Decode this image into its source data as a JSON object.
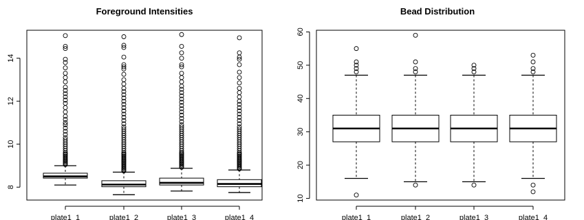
{
  "chart_data": [
    {
      "type": "boxplot",
      "title": "Foreground Intensities",
      "xlabel": "",
      "ylabel": "",
      "categories": [
        "plate1_1",
        "plate1_2",
        "plate1_3",
        "plate1_4"
      ],
      "ylim": [
        7.4,
        15.3
      ],
      "yticks": [
        8,
        10,
        12,
        14
      ],
      "boxes": [
        {
          "min": 8.1,
          "q1": 8.42,
          "median": 8.5,
          "q3": 8.65,
          "max": 9.0,
          "outliers": [
            9.05,
            9.1,
            9.15,
            9.2,
            9.25,
            9.3,
            9.35,
            9.4,
            9.45,
            9.5,
            9.55,
            9.6,
            9.7,
            9.8,
            9.9,
            10.0,
            10.1,
            10.2,
            10.3,
            10.45,
            10.6,
            10.75,
            10.9,
            11.0,
            11.15,
            11.3,
            11.5,
            11.7,
            11.9,
            12.05,
            12.2,
            12.35,
            12.5,
            12.65,
            12.9,
            13.1,
            13.3,
            13.55,
            13.8,
            13.95,
            14.45,
            14.55,
            15.05
          ]
        },
        {
          "min": 7.65,
          "q1": 8.02,
          "median": 8.12,
          "q3": 8.3,
          "max": 8.7,
          "outliers": [
            8.75,
            8.8,
            8.85,
            8.9,
            8.95,
            9.0,
            9.05,
            9.1,
            9.15,
            9.2,
            9.25,
            9.3,
            9.35,
            9.4,
            9.45,
            9.5,
            9.55,
            9.6,
            9.7,
            9.8,
            9.9,
            10.0,
            10.1,
            10.2,
            10.3,
            10.4,
            10.5,
            10.6,
            10.7,
            10.8,
            10.95,
            11.1,
            11.25,
            11.4,
            11.55,
            11.7,
            11.85,
            12.0,
            12.15,
            12.3,
            12.45,
            12.6,
            12.8,
            13.0,
            13.25,
            13.5,
            13.6,
            13.7,
            14.05,
            14.5,
            14.6,
            15.0
          ]
        },
        {
          "min": 7.82,
          "q1": 8.1,
          "median": 8.2,
          "q3": 8.42,
          "max": 8.88,
          "outliers": [
            8.92,
            8.97,
            9.02,
            9.07,
            9.12,
            9.17,
            9.22,
            9.27,
            9.32,
            9.37,
            9.42,
            9.47,
            9.52,
            9.57,
            9.62,
            9.7,
            9.8,
            9.9,
            10.0,
            10.1,
            10.2,
            10.3,
            10.4,
            10.5,
            10.6,
            10.7,
            10.8,
            10.9,
            11.05,
            11.2,
            11.35,
            11.5,
            11.65,
            11.8,
            11.95,
            12.1,
            12.25,
            12.4,
            12.55,
            12.7,
            12.9,
            13.1,
            13.3,
            13.6,
            13.7,
            14.0,
            14.25,
            14.55,
            15.1
          ]
        },
        {
          "min": 7.75,
          "q1": 8.02,
          "median": 8.15,
          "q3": 8.35,
          "max": 8.8,
          "outliers": [
            8.85,
            8.9,
            8.95,
            9.0,
            9.05,
            9.1,
            9.15,
            9.2,
            9.25,
            9.3,
            9.35,
            9.4,
            9.45,
            9.5,
            9.55,
            9.6,
            9.7,
            9.8,
            9.9,
            10.0,
            10.1,
            10.2,
            10.3,
            10.4,
            10.5,
            10.6,
            10.7,
            10.8,
            10.95,
            11.1,
            11.25,
            11.4,
            11.55,
            11.7,
            11.85,
            12.0,
            12.2,
            12.4,
            12.6,
            12.85,
            13.1,
            13.35,
            13.7,
            13.95,
            14.05,
            14.25,
            14.95
          ]
        }
      ]
    },
    {
      "type": "boxplot",
      "title": "Bead Distribution",
      "xlabel": "",
      "ylabel": "",
      "categories": [
        "plate1_1",
        "plate1_2",
        "plate1_3",
        "plate1_4"
      ],
      "ylim": [
        9.5,
        60.5
      ],
      "yticks": [
        10,
        20,
        30,
        40,
        50,
        60
      ],
      "boxes": [
        {
          "min": 16,
          "q1": 27,
          "median": 31,
          "q3": 35,
          "max": 47,
          "outliers": [
            11,
            48,
            49,
            50,
            51,
            55
          ]
        },
        {
          "min": 15,
          "q1": 27,
          "median": 31,
          "q3": 35,
          "max": 47,
          "outliers": [
            14,
            48,
            49,
            51,
            59
          ]
        },
        {
          "min": 15,
          "q1": 27,
          "median": 31,
          "q3": 35,
          "max": 47,
          "outliers": [
            14,
            48,
            49,
            50
          ]
        },
        {
          "min": 16,
          "q1": 27,
          "median": 31,
          "q3": 35,
          "max": 47,
          "outliers": [
            12,
            14,
            48,
            49,
            51,
            53
          ]
        }
      ]
    }
  ]
}
